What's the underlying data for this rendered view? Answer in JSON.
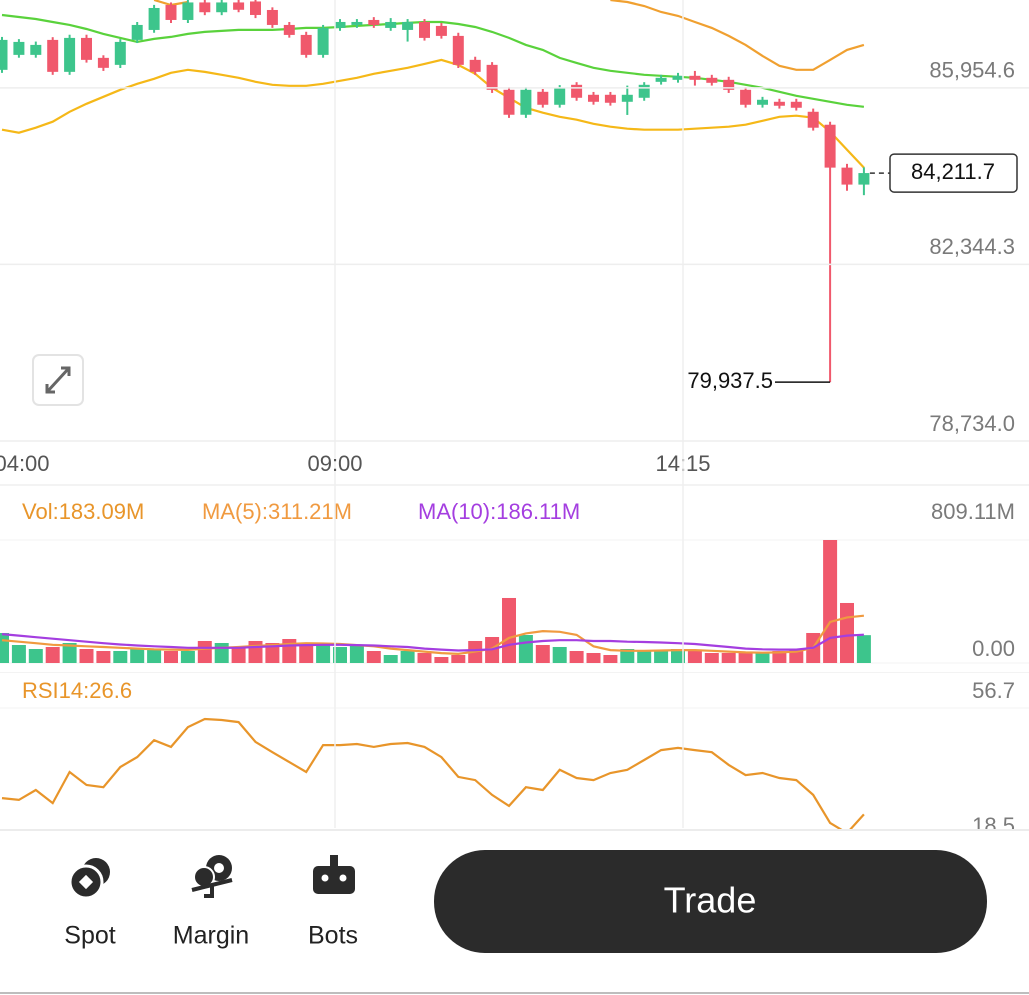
{
  "price_chart": {
    "candles": {
      "open": [
        86322,
        86628,
        86628,
        86934,
        86281,
        86975,
        86567,
        86424,
        86934,
        87138,
        87648,
        87342,
        87700,
        87500,
        87700,
        87720,
        87546,
        87240,
        87036,
        86628,
        87179,
        87240,
        87342,
        87179,
        87138,
        87301,
        87220,
        87016,
        86526,
        86424,
        85914,
        85404,
        85873,
        85608,
        86016,
        85812,
        85812,
        85669,
        85751,
        86077,
        86118,
        86200,
        86159,
        86118,
        85914,
        85608,
        85669,
        85669,
        85465,
        85200,
        84323,
        83976
      ],
      "high": [
        86995,
        86950,
        86900,
        86990,
        87040,
        87040,
        86620,
        86950,
        87300,
        87650,
        87700,
        87750,
        87750,
        87750,
        87750,
        87750,
        87600,
        87300,
        87100,
        87240,
        87360,
        87360,
        87400,
        87380,
        87360,
        87360,
        87280,
        87080,
        86590,
        86480,
        85970,
        85970,
        85930,
        86010,
        86070,
        85870,
        85870,
        86000,
        86070,
        86220,
        86260,
        86300,
        86220,
        86180,
        85970,
        85770,
        85730,
        85730,
        85530,
        85260,
        84400,
        84330
      ],
      "low": [
        86260,
        86570,
        86570,
        86220,
        86220,
        86470,
        86300,
        86360,
        86870,
        87080,
        87280,
        87280,
        87440,
        87440,
        87500,
        87380,
        87180,
        86980,
        86570,
        86570,
        87120,
        87180,
        87180,
        87120,
        86900,
        86920,
        86960,
        86360,
        86220,
        85850,
        85340,
        85340,
        85550,
        85550,
        85690,
        85610,
        85590,
        85400,
        85690,
        86020,
        86060,
        86000,
        86000,
        85850,
        85550,
        85550,
        85530,
        85490,
        85080,
        79937.5,
        83850,
        83760
      ],
      "close": [
        86934,
        86893,
        86832,
        86281,
        86975,
        86526,
        86363,
        86893,
        87240,
        87587,
        87342,
        87700,
        87500,
        87700,
        87550,
        87444,
        87240,
        87036,
        86628,
        87179,
        87301,
        87301,
        87240,
        87301,
        87301,
        86975,
        87016,
        86424,
        86281,
        85914,
        85404,
        85914,
        85608,
        85955,
        85751,
        85669,
        85649,
        85812,
        86016,
        86159,
        86200,
        86118,
        86057,
        85914,
        85608,
        85710,
        85588,
        85547,
        85139,
        84323,
        83976,
        84211.7
      ],
      "up_color": "#3dc58c",
      "down_color": "#f0586c"
    },
    "bands": [
      {
        "color": "#f0a030",
        "values": [
          null,
          null,
          null,
          null,
          null,
          null,
          null,
          null,
          null,
          87750,
          87648,
          87709,
          null,
          null,
          null,
          null,
          null,
          null,
          null,
          null,
          null,
          null,
          null,
          null,
          null,
          null,
          null,
          null,
          null,
          null,
          null,
          null,
          null,
          null,
          null,
          null,
          87750,
          87709,
          87628,
          87505,
          87424,
          87301,
          87179,
          87016,
          86832,
          86608,
          86404,
          86322,
          86322,
          86526,
          86730,
          86832
        ]
      },
      {
        "color": "#5ad23c",
        "values": [
          87444,
          87403,
          87362,
          87301,
          87240,
          87158,
          87056,
          86975,
          86893,
          86954,
          86995,
          87056,
          87097,
          87118,
          87138,
          87138,
          87138,
          87158,
          87179,
          87179,
          87199,
          87220,
          87240,
          87260,
          87281,
          87301,
          87301,
          87260,
          87199,
          87097,
          86975,
          86832,
          86730,
          86567,
          86465,
          86363,
          86302,
          86261,
          86220,
          86200,
          86179,
          86159,
          86118,
          86077,
          86016,
          85955,
          85873,
          85792,
          85730,
          85669,
          85608,
          85567
        ]
      },
      {
        "color": "#f5b818",
        "values": [
          85098,
          85037,
          85139,
          85261,
          85465,
          85628,
          85771,
          85914,
          86036,
          86138,
          86261,
          86322,
          86281,
          86220,
          86159,
          86077,
          86016,
          85996,
          85996,
          86036,
          86098,
          86159,
          86241,
          86302,
          86363,
          86444,
          86526,
          86424,
          86241,
          85955,
          85751,
          85547,
          85445,
          85363,
          85302,
          85220,
          85159,
          85118,
          85098,
          85098,
          85098,
          85118,
          85139,
          85159,
          85200,
          85281,
          85363,
          85384,
          85343,
          85057,
          84690,
          84323
        ]
      }
    ],
    "ylim": [
      78734.0,
      87750
    ],
    "yticks": [
      {
        "value": 85954.6,
        "label": "85,954.6"
      },
      {
        "value": 82344.3,
        "label": "82,344.3"
      },
      {
        "value": 78734.0,
        "label": "78,734.0"
      }
    ],
    "last_price": {
      "value": 84211.7,
      "label": "84,211.7"
    },
    "low_marker": {
      "value": 79937.5,
      "label": "79,937.5"
    }
  },
  "time_labels": [
    "04:00",
    "09:00",
    "14:15"
  ],
  "volume": {
    "legend": [
      {
        "text": "Vol:183.09M",
        "color": "#e8952a"
      },
      {
        "text": "MA(5):311.21M",
        "color": "#f09a40"
      },
      {
        "text": "MA(10):186.11M",
        "color": "#a43ee0"
      }
    ],
    "values": [
      197.4,
      118.4,
      92.1,
      105.3,
      131.6,
      92.1,
      79.0,
      79.0,
      92.1,
      92.1,
      79.0,
      79.0,
      144.8,
      131.6,
      105.3,
      144.8,
      131.6,
      157.9,
      131.6,
      118.4,
      105.3,
      118.4,
      79.0,
      52.6,
      79.0,
      65.8,
      39.5,
      52.6,
      144.8,
      171.1,
      427.7,
      184.2,
      118.4,
      105.3,
      79.0,
      65.8,
      52.6,
      92.1,
      79.0,
      79.0,
      92.1,
      79.0,
      65.8,
      65.8,
      65.8,
      65.8,
      79.0,
      92.1,
      197.4,
      809.11,
      394.8,
      183.09
    ],
    "ma": [
      {
        "color": "#f09a40",
        "values": [
          150,
          140,
          130,
          120,
          115,
          110,
          105,
          100,
          95,
          90,
          88,
          86,
          95,
          100,
          105,
          112,
          118,
          125,
          130,
          128,
          125,
          118,
          110,
          95,
          85,
          75,
          65,
          60,
          75,
          95,
          165,
          195,
          210,
          205,
          185,
          110,
          85,
          80,
          80,
          82,
          85,
          85,
          80,
          75,
          70,
          68,
          70,
          75,
          100,
          270,
          300,
          311.21
        ]
      },
      {
        "color": "#a43ee0",
        "values": [
          190,
          180,
          170,
          160,
          150,
          140,
          130,
          122,
          115,
          110,
          105,
          100,
          100,
          100,
          100,
          105,
          110,
          115,
          118,
          120,
          120,
          118,
          115,
          110,
          105,
          95,
          88,
          82,
          85,
          90,
          120,
          135,
          145,
          150,
          150,
          145,
          145,
          140,
          138,
          135,
          130,
          125,
          115,
          105,
          95,
          90,
          88,
          88,
          100,
          165,
          180,
          186.11
        ]
      }
    ],
    "ylim": [
      0,
      809.11
    ],
    "yticks": [
      {
        "value": 809.11,
        "label": "809.11M"
      },
      {
        "value": 0,
        "label": "0.00"
      }
    ]
  },
  "rsi": {
    "legend": "RSI14:26.6",
    "color": "#e8952a",
    "values": [
      31.2,
      30.7,
      33.5,
      29.8,
      38.6,
      34.9,
      34.3,
      40.0,
      42.8,
      47.6,
      45.7,
      51.3,
      53.6,
      53.3,
      52.7,
      47.1,
      44.2,
      41.4,
      38.6,
      46.2,
      46.2,
      46.5,
      45.7,
      46.5,
      46.8,
      45.7,
      42.8,
      37.2,
      36.3,
      32.1,
      29.0,
      34.3,
      33.5,
      39.2,
      36.9,
      36.3,
      38.3,
      39.2,
      42.0,
      44.8,
      45.4,
      44.8,
      44.2,
      40.6,
      37.7,
      38.3,
      36.9,
      36.3,
      32.1,
      24.2,
      21.3,
      26.6
    ],
    "ylim": [
      18.5,
      56.7
    ],
    "yticks": [
      56.7,
      18.5
    ]
  },
  "nav": {
    "items": [
      "Spot",
      "Margin",
      "Bots"
    ],
    "button": "Trade"
  }
}
